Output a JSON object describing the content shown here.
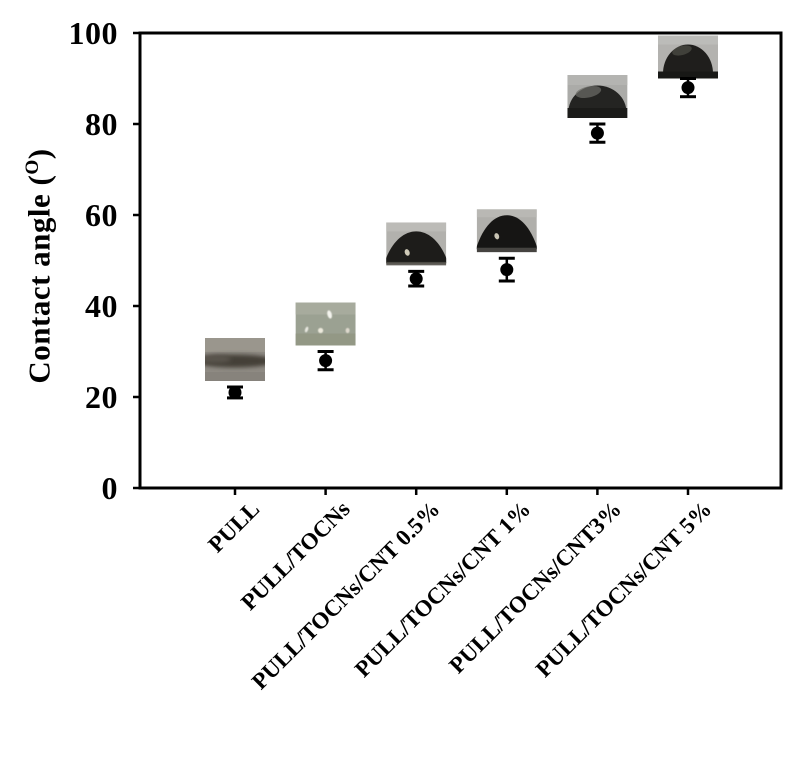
{
  "figure": {
    "y_axis_title": {
      "prefix": "Contact angle (",
      "degree_symbol": "O",
      "suffix": ")"
    }
  },
  "chart_data": {
    "type": "scatter",
    "title": "",
    "xlabel": "",
    "ylabel": "Contact angle (°)",
    "ylim": [
      0,
      100
    ],
    "yticks": [
      0,
      20,
      40,
      60,
      80,
      100
    ],
    "grid": false,
    "legend": false,
    "marker": {
      "shape": "circle",
      "color": "#000000",
      "size": 13
    },
    "error_bar_color": "#000000",
    "categories": [
      "PULL",
      "PULL/TOCNs",
      "PULL/TOCNs/CNT 0.5%",
      "PULL/TOCNs/CNT 1%",
      "PULL/TOCNs/CNT3%",
      "PULL/TOCNs/CNT 5%"
    ],
    "series": [
      {
        "name": "Contact angle",
        "values": [
          21,
          28,
          46,
          48,
          78,
          88
        ],
        "errors": [
          1.2,
          2,
          1.6,
          2.5,
          2,
          2
        ]
      }
    ],
    "insets": [
      {
        "category": "PULL",
        "photo": "flat-spread-water-film"
      },
      {
        "category": "PULL/TOCNs",
        "photo": "speckled-film-surface"
      },
      {
        "category": "PULL/TOCNs/CNT 0.5%",
        "photo": "dark-droplet-dome-low"
      },
      {
        "category": "PULL/TOCNs/CNT 1%",
        "photo": "dark-droplet-dome-medium"
      },
      {
        "category": "PULL/TOCNs/CNT3%",
        "photo": "dark-droplet-dome-wide-glossy"
      },
      {
        "category": "PULL/TOCNs/CNT 5%",
        "photo": "dark-droplet-dome-tall"
      }
    ]
  }
}
